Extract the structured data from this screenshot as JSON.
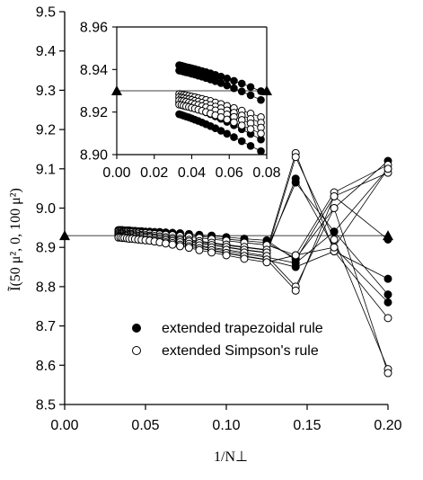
{
  "chart_data": {
    "type": "line",
    "main": {
      "xlabel": "1/N⊥",
      "ylabel": "Ĩ(50 μ², 0, 100 μ²)",
      "xlim": [
        0,
        0.2
      ],
      "ylim": [
        8.5,
        9.5
      ],
      "xticks": [
        "0.00",
        "0.05",
        "0.10",
        "0.15",
        "0.20"
      ],
      "yticks": [
        "8.5",
        "8.6",
        "8.7",
        "8.8",
        "8.9",
        "9.0",
        "9.1",
        "9.2",
        "9.3",
        "9.4",
        "9.5"
      ],
      "reference_y": 8.93,
      "x": [
        0.0333,
        0.0345,
        0.0357,
        0.037,
        0.0385,
        0.04,
        0.0417,
        0.0435,
        0.0455,
        0.0476,
        0.05,
        0.0526,
        0.0556,
        0.0588,
        0.0625,
        0.0667,
        0.0714,
        0.0769,
        0.0833,
        0.0909,
        0.1,
        0.1111,
        0.125,
        0.1429,
        0.1667,
        0.2
      ],
      "series": [
        {
          "marker": "filled",
          "values": [
            8.944,
            8.944,
            8.944,
            8.943,
            8.943,
            8.943,
            8.942,
            8.942,
            8.941,
            8.941,
            8.94,
            8.94,
            8.939,
            8.939,
            8.938,
            8.937,
            8.936,
            8.934,
            8.932,
            8.93,
            8.926,
            8.922,
            8.918,
            8.868,
            9.03,
            8.92
          ]
        },
        {
          "marker": "filled",
          "values": [
            8.941,
            8.941,
            8.94,
            8.94,
            8.94,
            8.94,
            8.939,
            8.939,
            8.938,
            8.938,
            8.937,
            8.937,
            8.936,
            8.935,
            8.934,
            8.933,
            8.932,
            8.93,
            8.928,
            8.925,
            8.921,
            8.917,
            8.912,
            8.872,
            9.0,
            9.12
          ]
        },
        {
          "marker": "filled",
          "values": [
            8.935,
            8.935,
            8.935,
            8.934,
            8.934,
            8.933,
            8.933,
            8.932,
            8.932,
            8.931,
            8.93,
            8.929,
            8.928,
            8.927,
            8.925,
            8.923,
            8.921,
            8.918,
            8.914,
            8.91,
            8.905,
            8.9,
            8.893,
            9.065,
            8.94,
            8.78
          ]
        },
        {
          "marker": "filled",
          "values": [
            8.933,
            8.933,
            8.932,
            8.932,
            8.931,
            8.931,
            8.93,
            8.93,
            8.929,
            8.928,
            8.927,
            8.926,
            8.925,
            8.924,
            8.922,
            8.92,
            8.917,
            8.914,
            8.91,
            8.906,
            8.9,
            8.893,
            8.886,
            9.075,
            8.9,
            8.76
          ]
        },
        {
          "marker": "filled",
          "values": [
            8.93,
            8.93,
            8.929,
            8.929,
            8.928,
            8.927,
            8.927,
            8.926,
            8.925,
            8.925,
            8.924,
            8.923,
            8.921,
            8.919,
            8.917,
            8.915,
            8.912,
            8.908,
            8.903,
            8.897,
            8.891,
            8.883,
            8.875,
            8.86,
            8.94,
            9.1
          ]
        },
        {
          "marker": "filled",
          "values": [
            8.928,
            8.928,
            8.927,
            8.926,
            8.926,
            8.925,
            8.924,
            8.924,
            8.923,
            8.922,
            8.921,
            8.92,
            8.918,
            8.916,
            8.914,
            8.911,
            8.907,
            8.903,
            8.898,
            8.892,
            8.885,
            8.877,
            8.868,
            8.85,
            8.89,
            8.82
          ]
        },
        {
          "marker": "open",
          "values": [
            8.94,
            8.94,
            8.939,
            8.939,
            8.939,
            8.938,
            8.938,
            8.937,
            8.937,
            8.936,
            8.936,
            8.935,
            8.934,
            8.933,
            8.932,
            8.931,
            8.929,
            8.927,
            8.924,
            8.921,
            8.917,
            8.912,
            8.906,
            8.88,
            9.04,
            9.11
          ]
        },
        {
          "marker": "open",
          "values": [
            8.936,
            8.936,
            8.936,
            8.935,
            8.935,
            8.934,
            8.934,
            8.933,
            8.933,
            8.932,
            8.931,
            8.93,
            8.929,
            8.928,
            8.926,
            8.924,
            8.922,
            8.919,
            8.916,
            8.912,
            8.907,
            8.901,
            8.894,
            9.14,
            8.89,
            8.72
          ]
        },
        {
          "marker": "open",
          "values": [
            8.933,
            8.933,
            8.933,
            8.932,
            8.932,
            8.931,
            8.931,
            8.93,
            8.929,
            8.929,
            8.928,
            8.927,
            8.925,
            8.924,
            8.922,
            8.92,
            8.918,
            8.915,
            8.911,
            8.906,
            8.901,
            8.894,
            8.887,
            9.13,
            8.92,
            8.59
          ]
        },
        {
          "marker": "open",
          "values": [
            8.93,
            8.93,
            8.93,
            8.929,
            8.929,
            8.928,
            8.928,
            8.927,
            8.926,
            8.926,
            8.925,
            8.924,
            8.922,
            8.92,
            8.918,
            8.916,
            8.913,
            8.909,
            8.905,
            8.9,
            8.894,
            8.887,
            8.878,
            8.8,
            9.0,
            8.58
          ]
        },
        {
          "marker": "open",
          "values": [
            8.927,
            8.927,
            8.927,
            8.926,
            8.925,
            8.925,
            8.924,
            8.923,
            8.923,
            8.922,
            8.921,
            8.919,
            8.918,
            8.916,
            8.913,
            8.911,
            8.907,
            8.903,
            8.898,
            8.893,
            8.886,
            8.878,
            8.869,
            8.79,
            9.03,
            9.09
          ]
        },
        {
          "marker": "open",
          "values": [
            8.925,
            8.925,
            8.924,
            8.924,
            8.923,
            8.922,
            8.922,
            8.921,
            8.92,
            8.919,
            8.918,
            8.917,
            8.915,
            8.913,
            8.91,
            8.907,
            8.903,
            8.899,
            8.893,
            8.887,
            8.88,
            8.871,
            8.862,
            8.88,
            8.9,
            9.1
          ]
        }
      ]
    },
    "inset": {
      "xlim": [
        0,
        0.08
      ],
      "ylim": [
        8.9,
        8.96
      ],
      "xticks": [
        "0.00",
        "0.02",
        "0.04",
        "0.06",
        "0.08"
      ],
      "yticks": [
        "8.90",
        "8.92",
        "8.94",
        "8.96"
      ],
      "reference_y": 8.93,
      "x": [
        0.0333,
        0.0345,
        0.0357,
        0.037,
        0.0385,
        0.04,
        0.0417,
        0.0435,
        0.0455,
        0.0476,
        0.05,
        0.0526,
        0.0556,
        0.0588,
        0.0625,
        0.0667,
        0.0714,
        0.0769
      ],
      "series": [
        {
          "marker": "filled",
          "values": [
            8.942,
            8.9418,
            8.9415,
            8.9412,
            8.9409,
            8.9406,
            8.9402,
            8.9398,
            8.9393,
            8.9388,
            8.9382,
            8.9375,
            8.9367,
            8.9358,
            8.9347,
            8.9334,
            8.9318,
            8.9298
          ]
        },
        {
          "marker": "filled",
          "values": [
            8.9395,
            8.9393,
            8.939,
            8.9387,
            8.9384,
            8.938,
            8.9376,
            8.9371,
            8.9366,
            8.936,
            8.9353,
            8.9345,
            8.9336,
            8.9325,
            8.9312,
            8.9297,
            8.9279,
            8.9257
          ]
        },
        {
          "marker": "filled",
          "values": [
            8.9245,
            8.9242,
            8.9239,
            8.9235,
            8.9231,
            8.9226,
            8.922,
            8.9214,
            8.9207,
            8.9199,
            8.919,
            8.918,
            8.9168,
            8.9154,
            8.9138,
            8.9119,
            8.9097,
            8.9071
          ]
        },
        {
          "marker": "filled",
          "values": [
            8.919,
            8.9187,
            8.9183,
            8.9179,
            8.9175,
            8.917,
            8.9164,
            8.9158,
            8.9151,
            8.9143,
            8.9134,
            8.9124,
            8.9112,
            8.9098,
            8.9082,
            8.9063,
            8.9041,
            8.9016
          ]
        },
        {
          "marker": "open",
          "values": [
            8.9285,
            8.9283,
            8.9281,
            8.9279,
            8.9276,
            8.9273,
            8.927,
            8.9266,
            8.9262,
            8.9257,
            8.9252,
            8.9245,
            8.9238,
            8.9229,
            8.9219,
            8.9207,
            8.9193,
            8.9176
          ]
        },
        {
          "marker": "open",
          "values": [
            8.927,
            8.9268,
            8.9266,
            8.9263,
            8.926,
            8.9257,
            8.9253,
            8.9249,
            8.9244,
            8.9239,
            8.9233,
            8.9226,
            8.9218,
            8.9208,
            8.9197,
            8.9184,
            8.9168,
            8.915
          ]
        },
        {
          "marker": "open",
          "values": [
            8.9255,
            8.9253,
            8.9251,
            8.9248,
            8.9245,
            8.9241,
            8.9237,
            8.9233,
            8.9228,
            8.9222,
            8.9216,
            8.9208,
            8.9199,
            8.9189,
            8.9177,
            8.9163,
            8.9147,
            8.9127
          ]
        },
        {
          "marker": "open",
          "values": [
            8.9235,
            8.9233,
            8.923,
            8.9227,
            8.9224,
            8.922,
            8.9216,
            8.9211,
            8.9206,
            8.92,
            8.9193,
            8.9185,
            8.9176,
            8.9165,
            8.9152,
            8.9137,
            8.912,
            8.9099
          ]
        }
      ]
    },
    "legend": [
      {
        "marker": "filled",
        "label": "extended trapezoidal rule"
      },
      {
        "marker": "open",
        "label": "extended Simpson's rule"
      }
    ],
    "legend_position": "lower-center",
    "grid": false
  }
}
